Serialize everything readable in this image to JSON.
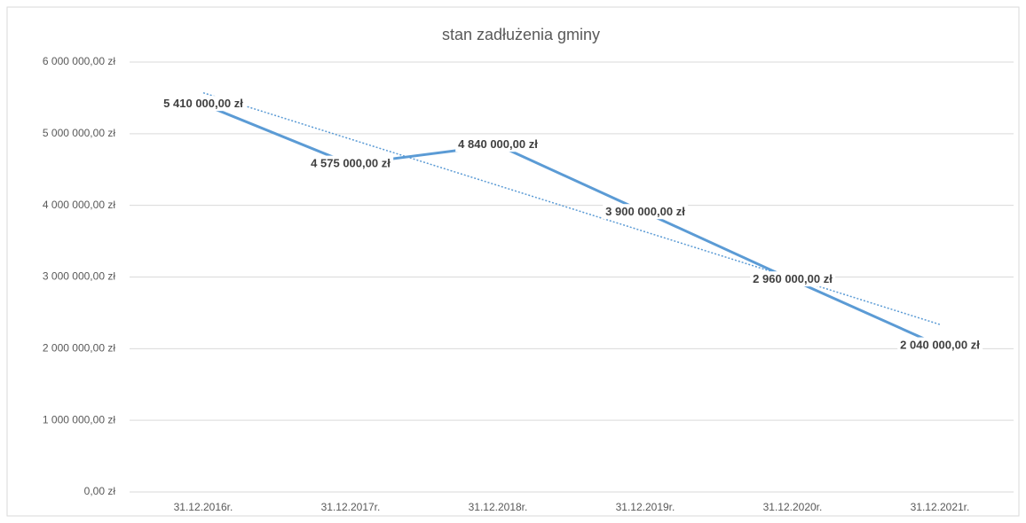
{
  "chart_data": {
    "type": "line",
    "title": "stan zadłużenia gminy",
    "categories": [
      "31.12.2016r.",
      "31.12.2017r.",
      "31.12.2018r.",
      "31.12.2019r.",
      "31.12.2020r.",
      "31.12.2021r."
    ],
    "values": [
      5410000,
      4575000,
      4840000,
      3900000,
      2960000,
      2040000
    ],
    "value_labels": [
      "5 410 000,00 zł",
      "4 575 000,00 zł",
      "4 840 000,00 zł",
      "3 900 000,00 zł",
      "2 960 000,00 zł",
      "2 040 000,00 zł"
    ],
    "color": "#5b9bd5",
    "trendline": "linear",
    "ylim": [
      0,
      6000000
    ],
    "yticks": [
      {
        "value": 0,
        "label": "0,00 zł"
      },
      {
        "value": 1000000,
        "label": "1 000 000,00 zł"
      },
      {
        "value": 2000000,
        "label": "2 000 000,00 zł"
      },
      {
        "value": 3000000,
        "label": "3 000 000,00 zł"
      },
      {
        "value": 4000000,
        "label": "4 000 000,00 zł"
      },
      {
        "value": 5000000,
        "label": "5 000 000,00 zł"
      },
      {
        "value": 6000000,
        "label": "6 000 000,00 zł"
      }
    ],
    "grid": true
  }
}
